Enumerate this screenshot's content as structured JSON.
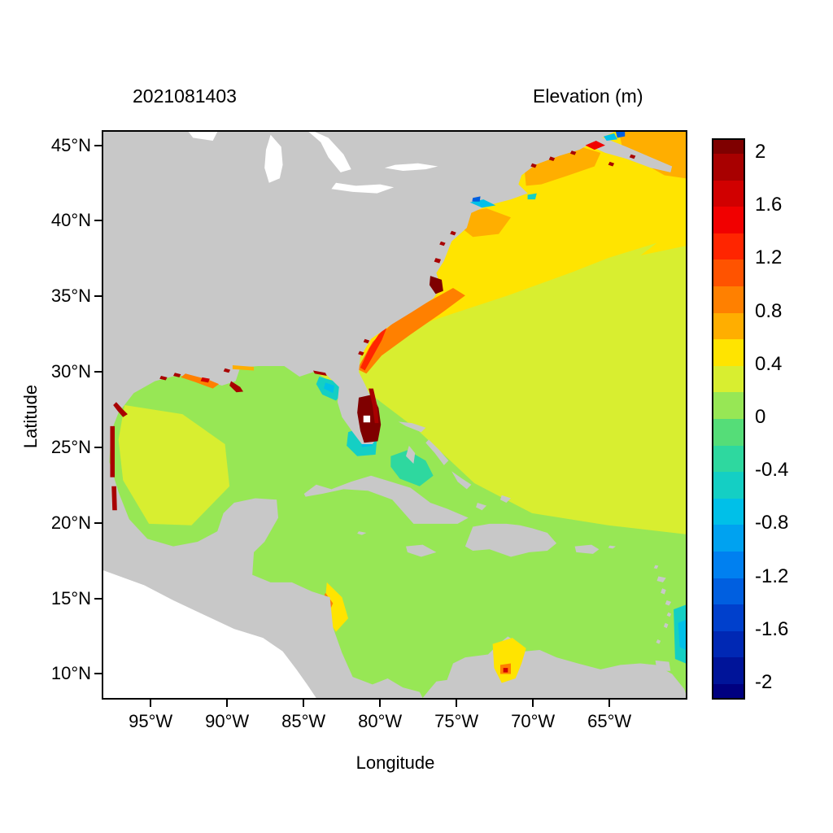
{
  "figure": {
    "timestamp_title": "2021081403",
    "colorbar_title": "Elevation (m)"
  },
  "axes": {
    "x_label": "Longitude",
    "y_label": "Latitude",
    "x_ticks": [
      {
        "label": "95°W",
        "lon": -95
      },
      {
        "label": "90°W",
        "lon": -90
      },
      {
        "label": "85°W",
        "lon": -85
      },
      {
        "label": "80°W",
        "lon": -80
      },
      {
        "label": "75°W",
        "lon": -75
      },
      {
        "label": "70°W",
        "lon": -70
      },
      {
        "label": "65°W",
        "lon": -65
      }
    ],
    "y_ticks": [
      {
        "label": "45°N",
        "lat": 45
      },
      {
        "label": "40°N",
        "lat": 40
      },
      {
        "label": "35°N",
        "lat": 35
      },
      {
        "label": "30°N",
        "lat": 30
      },
      {
        "label": "25°N",
        "lat": 25
      },
      {
        "label": "20°N",
        "lat": 20
      },
      {
        "label": "15°N",
        "lat": 15
      },
      {
        "label": "10°N",
        "lat": 10
      }
    ]
  },
  "colorbar": {
    "tick_labels": [
      "2",
      "1.6",
      "1.2",
      "0.8",
      "0.4",
      "0",
      "-0.4",
      "-0.8",
      "-1.2",
      "-1.6",
      "-2"
    ],
    "min": -2,
    "max": 2,
    "step": 0.2,
    "colors_top_to_bottom": [
      "#7f0000",
      "#a80000",
      "#d10000",
      "#f10000",
      "#ff2500",
      "#ff5300",
      "#ff8000",
      "#ffae00",
      "#ffe400",
      "#d8ee30",
      "#97e755",
      "#55dd78",
      "#2ed89f",
      "#14cfc4",
      "#00c0e8",
      "#00a2f0",
      "#0080f0",
      "#005fe0",
      "#0040cc",
      "#0028b4",
      "#001499",
      "#000080"
    ]
  },
  "map_colors": {
    "land": "#c8c8c8",
    "lake": "#ffffff",
    "outside_domain": "#ffffff"
  },
  "chart_data": {
    "type": "heatmap",
    "subtype": "filled-contour-geographic-map",
    "title": "Elevation (m)",
    "timestamp": "2021081403",
    "xlabel": "Longitude",
    "ylabel": "Latitude",
    "x_ticks_deg_west": [
      95,
      90,
      85,
      80,
      75,
      70,
      65
    ],
    "y_ticks_deg_north": [
      45,
      40,
      35,
      30,
      25,
      20,
      15,
      10
    ],
    "lon_range_deg_east": [
      -98.2,
      -59.9
    ],
    "lat_range_deg_north": [
      8.3,
      46.0
    ],
    "grid": false,
    "legend_position": "right-colorbar",
    "colorbar": {
      "min": -2,
      "max": 2,
      "contour_interval": 0.2,
      "tick_values": [
        2,
        1.6,
        1.2,
        0.8,
        0.4,
        0,
        -0.4,
        -0.8,
        -1.2,
        -1.6,
        -2
      ]
    },
    "regions": [
      {
        "area": "Open North Atlantic 35-46N",
        "elevation_m": 0.5
      },
      {
        "area": "Central Atlantic / Sargasso 20-35N",
        "elevation_m": 0.3
      },
      {
        "area": "Gulf of Mexico interior",
        "elevation_m": 0.3
      },
      {
        "area": "Gulf of Mexico margins",
        "elevation_m": 0.1
      },
      {
        "area": "Caribbean Sea",
        "elevation_m": 0.1
      },
      {
        "area": "US southeast coast nearshore band",
        "elevation_m": 0.9
      },
      {
        "area": "New York Bight",
        "elevation_m": 0.7
      },
      {
        "area": "Gulf of Maine",
        "elevation_m": 0.7
      },
      {
        "area": "Gulf of St Lawrence / northeast corner",
        "elevation_m": 0.7
      },
      {
        "area": "Bay of Fundy spots",
        "elevation_m": -1.3
      },
      {
        "area": "Long Island Sound spots",
        "elevation_m": -0.7
      },
      {
        "area": "Florida Bay and Keys",
        "elevation_m": -0.5
      },
      {
        "area": "Great Bahama Bank",
        "elevation_m": -0.3
      },
      {
        "area": "West Florida Big Bend shelf",
        "elevation_m": -0.5
      },
      {
        "area": "Southeast Florida coastal cluster",
        "elevation_m": 2.0
      },
      {
        "area": "Northern Gulf coast speckles",
        "elevation_m": 2.0
      },
      {
        "area": "Pamlico Sound",
        "elevation_m": 2.0
      },
      {
        "area": "Gulf of Venezuela / Maracaibo",
        "elevation_m": 0.5
      },
      {
        "area": "Nicaragua shelf",
        "elevation_m": 0.5
      },
      {
        "area": "Land mask",
        "elevation_m": null
      },
      {
        "area": "Pacific (outside model domain)",
        "elevation_m": null
      }
    ]
  }
}
